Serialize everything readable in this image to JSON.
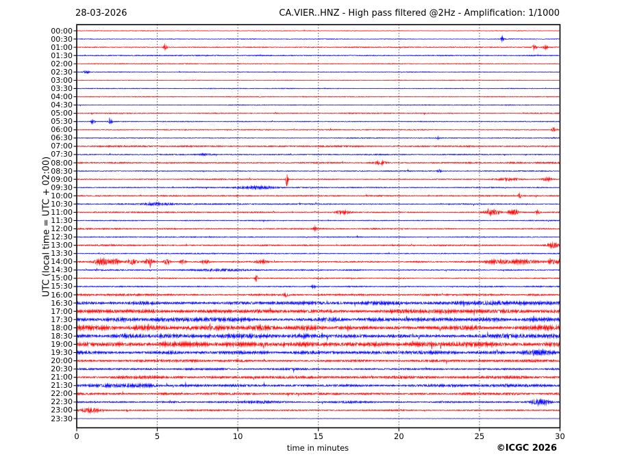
{
  "header": {
    "date": "28-03-2026",
    "title": "CA.VIER..HNZ - High pass filtered @2Hz - Amplification: 1/1000"
  },
  "axes": {
    "ylabel": "UTC (local time = UTC + 02:00)",
    "xlabel": "time in minutes",
    "x_ticks": [
      "0",
      "5",
      "10",
      "15",
      "20",
      "25",
      "30"
    ],
    "x_min": 0,
    "x_max": 30,
    "grid_minutes": [
      5,
      10,
      15,
      20,
      25
    ]
  },
  "footer": {
    "credit": "©ICGC 2026"
  },
  "colors": {
    "trace_red": "#ff0000",
    "trace_blue": "#0000ff",
    "grid": "#444444",
    "axis": "#000000",
    "text": "#000000",
    "background": "#ffffff"
  },
  "chart_data": {
    "type": "line",
    "subtype": "helicorder-seismogram",
    "minutes_per_row": 30,
    "row_interval": "00:30",
    "amp_unit": "pixels-half-amplitude",
    "event_format": "[center_minute, half_width_minutes, extra_amplitude_px]",
    "rows": [
      {
        "label": "00:00",
        "color": "red",
        "amp": 0.35,
        "events": []
      },
      {
        "label": "00:30",
        "color": "blue",
        "amp": 0.4,
        "events": [
          [
            26.4,
            0.12,
            2.5
          ]
        ]
      },
      {
        "label": "01:00",
        "color": "red",
        "amp": 0.55,
        "events": [
          [
            5.5,
            0.1,
            3.0
          ],
          [
            28.4,
            0.12,
            2.2
          ],
          [
            29.1,
            0.12,
            2.2
          ]
        ]
      },
      {
        "label": "01:30",
        "color": "blue",
        "amp": 0.6,
        "events": []
      },
      {
        "label": "02:00",
        "color": "red",
        "amp": 0.45,
        "events": []
      },
      {
        "label": "02:30",
        "color": "blue",
        "amp": 0.45,
        "events": [
          [
            0.6,
            0.2,
            1.6
          ]
        ]
      },
      {
        "label": "03:00",
        "color": "red",
        "amp": 0.4,
        "events": []
      },
      {
        "label": "03:30",
        "color": "blue",
        "amp": 0.45,
        "events": []
      },
      {
        "label": "04:00",
        "color": "red",
        "amp": 0.5,
        "events": []
      },
      {
        "label": "04:30",
        "color": "blue",
        "amp": 0.45,
        "events": []
      },
      {
        "label": "05:00",
        "color": "red",
        "amp": 0.6,
        "events": []
      },
      {
        "label": "05:30",
        "color": "blue",
        "amp": 0.5,
        "events": [
          [
            1.0,
            0.12,
            2.2
          ],
          [
            2.1,
            0.12,
            2.2
          ]
        ]
      },
      {
        "label": "06:00",
        "color": "red",
        "amp": 0.55,
        "events": [
          [
            29.6,
            0.1,
            2.6
          ]
        ]
      },
      {
        "label": "06:30",
        "color": "blue",
        "amp": 0.55,
        "events": [
          [
            22.4,
            0.12,
            1.4
          ]
        ]
      },
      {
        "label": "07:00",
        "color": "red",
        "amp": 0.85,
        "events": []
      },
      {
        "label": "07:30",
        "color": "blue",
        "amp": 0.65,
        "events": [
          [
            8.0,
            0.5,
            0.9
          ]
        ]
      },
      {
        "label": "08:00",
        "color": "red",
        "amp": 0.85,
        "events": [
          [
            18.8,
            0.45,
            1.7
          ]
        ]
      },
      {
        "label": "08:30",
        "color": "blue",
        "amp": 0.55,
        "events": [
          [
            22.5,
            0.12,
            1.4
          ]
        ]
      },
      {
        "label": "09:00",
        "color": "red",
        "amp": 0.6,
        "events": [
          [
            13.05,
            0.07,
            8.0
          ],
          [
            26.8,
            0.9,
            1.2
          ],
          [
            29.2,
            0.3,
            1.4
          ]
        ]
      },
      {
        "label": "09:30",
        "color": "blue",
        "amp": 0.6,
        "events": [
          [
            11.2,
            1.3,
            1.3
          ]
        ]
      },
      {
        "label": "10:00",
        "color": "red",
        "amp": 0.7,
        "events": [
          [
            27.5,
            0.09,
            3.2
          ]
        ]
      },
      {
        "label": "10:30",
        "color": "blue",
        "amp": 0.7,
        "events": [
          [
            5.0,
            0.9,
            1.0
          ]
        ]
      },
      {
        "label": "11:00",
        "color": "red",
        "amp": 0.7,
        "events": [
          [
            16.5,
            0.5,
            1.5
          ],
          [
            25.8,
            0.45,
            2.6
          ],
          [
            27.1,
            0.3,
            2.6
          ],
          [
            28.6,
            0.18,
            1.7
          ]
        ]
      },
      {
        "label": "11:30",
        "color": "blue",
        "amp": 0.55,
        "events": []
      },
      {
        "label": "12:00",
        "color": "red",
        "amp": 0.75,
        "events": [
          [
            14.8,
            0.09,
            2.3
          ]
        ]
      },
      {
        "label": "12:30",
        "color": "blue",
        "amp": 0.55,
        "events": []
      },
      {
        "label": "13:00",
        "color": "red",
        "amp": 0.8,
        "events": [
          [
            29.6,
            0.35,
            2.6
          ]
        ]
      },
      {
        "label": "13:30",
        "color": "blue",
        "amp": 0.6,
        "events": []
      },
      {
        "label": "14:00",
        "color": "red",
        "amp": 0.8,
        "events": [
          [
            1.6,
            0.45,
            3.2
          ],
          [
            2.4,
            0.25,
            3.0
          ],
          [
            3.4,
            0.35,
            3.0
          ],
          [
            4.5,
            0.3,
            2.9
          ],
          [
            5.6,
            0.22,
            2.4
          ],
          [
            6.6,
            0.18,
            2.0
          ],
          [
            8.0,
            0.3,
            1.5
          ],
          [
            11.5,
            0.3,
            1.5
          ],
          [
            26.0,
            0.8,
            1.5
          ],
          [
            27.8,
            1.0,
            1.5
          ],
          [
            29.6,
            0.35,
            1.8
          ]
        ]
      },
      {
        "label": "14:30",
        "color": "blue",
        "amp": 0.7,
        "events": [
          [
            9.0,
            1.5,
            1.0
          ]
        ]
      },
      {
        "label": "15:00",
        "color": "red",
        "amp": 0.6,
        "events": [
          [
            11.15,
            0.07,
            4.5
          ]
        ]
      },
      {
        "label": "15:30",
        "color": "blue",
        "amp": 0.7,
        "events": [
          [
            14.7,
            0.09,
            2.0
          ]
        ]
      },
      {
        "label": "16:00",
        "color": "red",
        "amp": 1.1,
        "events": [
          [
            13.0,
            0.12,
            2.0
          ]
        ]
      },
      {
        "label": "16:30",
        "color": "blue",
        "amp": 2.0,
        "events": []
      },
      {
        "label": "17:00",
        "color": "red",
        "amp": 2.1,
        "events": []
      },
      {
        "label": "17:30",
        "color": "blue",
        "amp": 2.1,
        "events": []
      },
      {
        "label": "18:00",
        "color": "red",
        "amp": 2.6,
        "events": []
      },
      {
        "label": "18:30",
        "color": "blue",
        "amp": 2.1,
        "events": []
      },
      {
        "label": "19:00",
        "color": "red",
        "amp": 2.4,
        "events": []
      },
      {
        "label": "19:30",
        "color": "blue",
        "amp": 1.7,
        "events": [
          [
            28.6,
            0.8,
            2.3
          ]
        ]
      },
      {
        "label": "20:00",
        "color": "red",
        "amp": 1.45,
        "events": []
      },
      {
        "label": "20:30",
        "color": "blue",
        "amp": 1.1,
        "events": []
      },
      {
        "label": "21:00",
        "color": "red",
        "amp": 1.6,
        "events": []
      },
      {
        "label": "21:30",
        "color": "blue",
        "amp": 1.5,
        "events": [
          [
            2.5,
            2.0,
            1.0
          ]
        ]
      },
      {
        "label": "22:00",
        "color": "red",
        "amp": 1.25,
        "events": []
      },
      {
        "label": "22:30",
        "color": "blue",
        "amp": 0.9,
        "events": [
          [
            11.5,
            1.0,
            0.8
          ],
          [
            17.0,
            1.0,
            0.6
          ],
          [
            28.8,
            0.55,
            3.0
          ]
        ]
      },
      {
        "label": "23:00",
        "color": "red",
        "amp": 0.85,
        "events": [
          [
            0.9,
            0.6,
            2.0
          ]
        ]
      },
      {
        "label": "23:30",
        "color": "blue",
        "amp": 0.28,
        "events": []
      }
    ]
  }
}
